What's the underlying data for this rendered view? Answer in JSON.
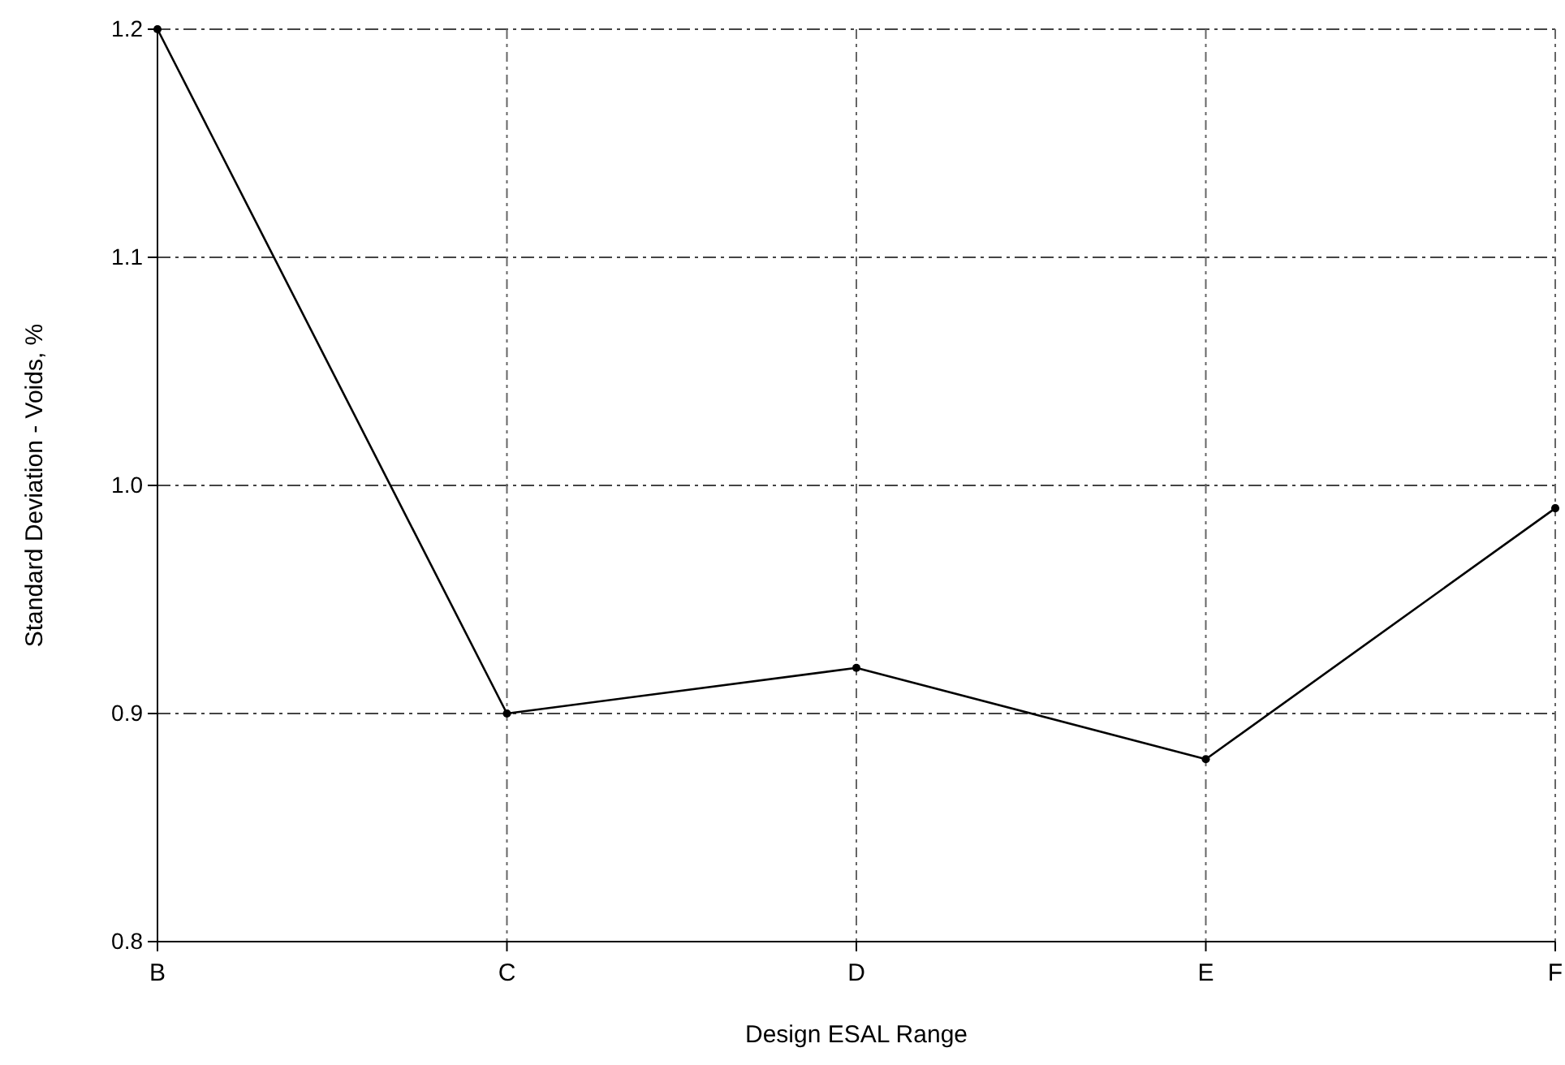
{
  "chart_data": {
    "type": "line",
    "xlabel": "Design ESAL Range",
    "ylabel": "Standard Deviation - Voids, %",
    "categories": [
      "B",
      "C",
      "D",
      "E",
      "F"
    ],
    "series": [
      {
        "color": "#000000",
        "values": [
          1.2,
          0.9,
          0.92,
          0.88,
          0.99
        ]
      }
    ],
    "ylim": [
      0.8,
      1.2
    ],
    "yticks": [
      {
        "value": 0.8,
        "label": "0.8"
      },
      {
        "value": 0.9,
        "label": "0.9"
      },
      {
        "value": 1.0,
        "label": "1.0"
      },
      {
        "value": 1.1,
        "label": "1.1"
      },
      {
        "value": 1.2,
        "label": "1.2"
      }
    ],
    "grid": true,
    "marker": "circle",
    "line_style": "solid"
  }
}
